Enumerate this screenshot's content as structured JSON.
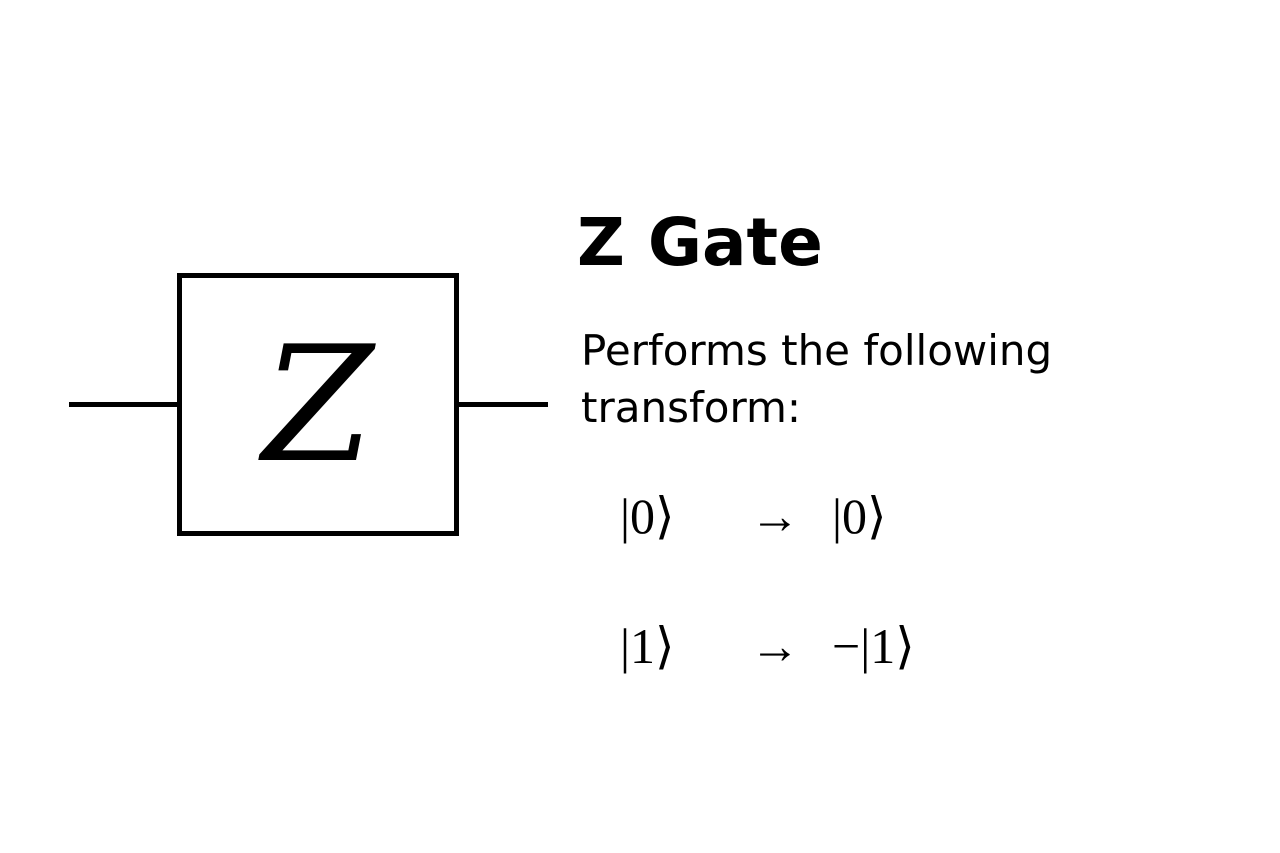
{
  "gate": {
    "symbol": "Z"
  },
  "title": "Z Gate",
  "description": "Performs the following transform:",
  "transforms": [
    {
      "input": "|0⟩",
      "arrow": "→",
      "output": "|0⟩"
    },
    {
      "input": "|1⟩",
      "arrow": "→",
      "output": "−|1⟩"
    }
  ]
}
